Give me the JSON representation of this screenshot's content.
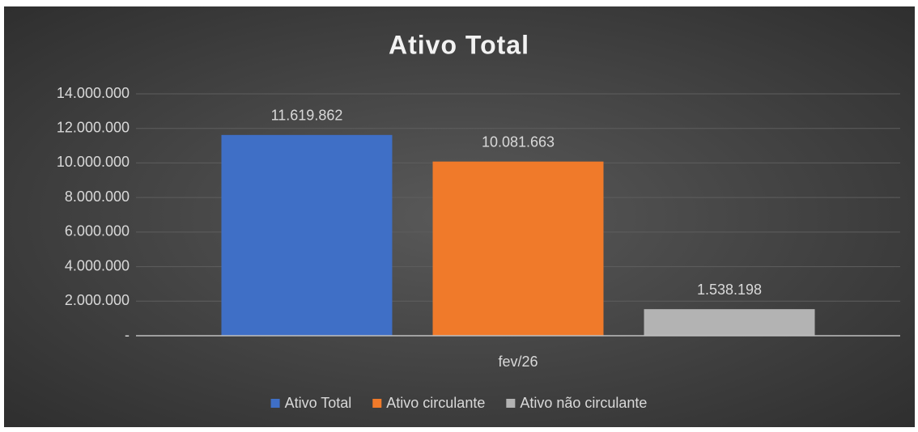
{
  "chart_data": {
    "type": "bar",
    "title": "Ativo Total",
    "categories": [
      "fev/26"
    ],
    "series": [
      {
        "name": "Ativo Total",
        "color": "#3f6fc6",
        "values": [
          11619862
        ],
        "value_labels": [
          "11.619.862"
        ]
      },
      {
        "name": "Ativo circulante",
        "color": "#f07a2a",
        "values": [
          10081663
        ],
        "value_labels": [
          "10.081.663"
        ]
      },
      {
        "name": "Ativo não circulante",
        "color": "#b3b3b3",
        "values": [
          1538198
        ],
        "value_labels": [
          "1.538.198"
        ]
      }
    ],
    "ylim": [
      0,
      14000000
    ],
    "yticks": [
      {
        "value": 0,
        "label": "-"
      },
      {
        "value": 2000000,
        "label": "2.000.000"
      },
      {
        "value": 4000000,
        "label": "4.000.000"
      },
      {
        "value": 6000000,
        "label": "6.000.000"
      },
      {
        "value": 8000000,
        "label": "8.000.000"
      },
      {
        "value": 10000000,
        "label": "10.000.000"
      },
      {
        "value": 12000000,
        "label": "12.000.000"
      },
      {
        "value": 14000000,
        "label": "14.000.000"
      }
    ],
    "grid": true,
    "legend": "bottom"
  }
}
